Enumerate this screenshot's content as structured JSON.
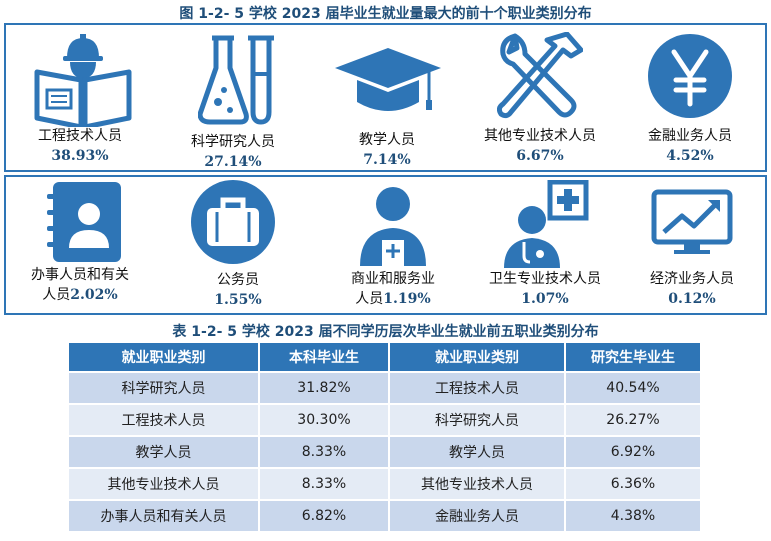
{
  "figure_title": "图 1-2- 5  学校 2023 届毕业生就业量最大的前十个职业类别分布",
  "occupations": [
    {
      "name": "工程技术人员",
      "percent": "38.93%",
      "icon": "engineer-reading-icon"
    },
    {
      "name": "科学研究人员",
      "percent": "27.14%",
      "icon": "lab-flask-icon"
    },
    {
      "name": "教学人员",
      "percent": "7.14%",
      "icon": "graduation-cap-icon"
    },
    {
      "name": "其他专业技术人员",
      "percent": "6.67%",
      "icon": "wrench-hammer-icon"
    },
    {
      "name": "金融业务人员",
      "percent": "4.52%",
      "icon": "yen-coin-icon"
    },
    {
      "name_line1": "办事人员和有关",
      "name_line2": "人员",
      "percent": "2.02%",
      "icon": "address-book-icon"
    },
    {
      "name": "公务员",
      "percent": "1.55%",
      "icon": "briefcase-icon"
    },
    {
      "name_line1": "商业和服务业",
      "name_line2": "人员",
      "percent": "1.19%",
      "icon": "service-worker-icon"
    },
    {
      "name": "卫生专业技术人员",
      "percent": "1.07%",
      "icon": "doctor-icon"
    },
    {
      "name": "经济业务人员",
      "percent": "0.12%",
      "icon": "trend-chart-icon"
    }
  ],
  "table_title": "表 1-2- 5  学校 2023 届不同学历层次毕业生就业前五职业类别分布",
  "table": {
    "headers": [
      "就业职业类别",
      "本科毕业生",
      "就业职业类别",
      "研究生毕业生"
    ],
    "rows": [
      [
        "科学研究人员",
        "31.82%",
        "工程技术人员",
        "40.54%"
      ],
      [
        "工程技术人员",
        "30.30%",
        "科学研究人员",
        "26.27%"
      ],
      [
        "教学人员",
        "8.33%",
        "教学人员",
        "6.92%"
      ],
      [
        "其他专业技术人员",
        "8.33%",
        "其他专业技术人员",
        "6.36%"
      ],
      [
        "办事人员和有关人员",
        "6.82%",
        "金融业务人员",
        "4.38%"
      ]
    ]
  },
  "colors": {
    "primary": "#2E75B6",
    "title": "#1F4E79",
    "row_odd": "#C9D7EC",
    "row_even": "#E4EBF5"
  }
}
